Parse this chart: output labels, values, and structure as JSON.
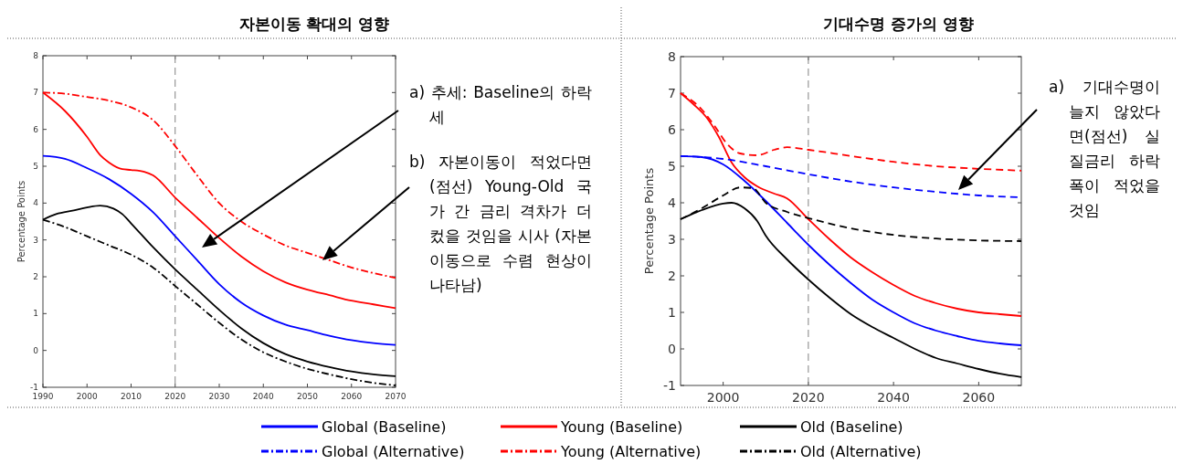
{
  "chart_data": [
    {
      "type": "line",
      "title": "자본이동 확대의 영향",
      "ylabel": "Percentage Points",
      "xlim": [
        1990,
        2070
      ],
      "xticks": [
        1990,
        2000,
        2010,
        2020,
        2030,
        2040,
        2050,
        2060,
        2070
      ],
      "ylim": [
        -1,
        8
      ],
      "yticks": [
        -1,
        0,
        1,
        2,
        3,
        4,
        5,
        6,
        7,
        8
      ],
      "grid": false,
      "legend": "bottom",
      "ref_lines": [
        {
          "axis": "x",
          "value": 2020,
          "color": "#808080",
          "line_style": "dashed"
        }
      ],
      "annotations": [
        "a) 추세: Baseline의 하락세",
        "b) 자본이동이 적었다면(점선) Young-Old 국가 간 금리 격차가 더 컸을 것임을 시사 (자본이동으로 수렴 현상이 나타남)"
      ],
      "series": [
        {
          "name": "Global (Baseline)",
          "color": "#0000ff",
          "line_style": "solid",
          "x": [
            1990,
            1995,
            2000,
            2005,
            2010,
            2015,
            2020,
            2025,
            2030,
            2035,
            2040,
            2045,
            2050,
            2055,
            2060,
            2065,
            2070
          ],
          "values": [
            5.28,
            5.2,
            4.95,
            4.65,
            4.25,
            3.75,
            3.1,
            2.45,
            1.8,
            1.3,
            0.95,
            0.7,
            0.55,
            0.4,
            0.28,
            0.2,
            0.15
          ]
        },
        {
          "name": "Young (Baseline)",
          "color": "#ff0000",
          "line_style": "solid",
          "x": [
            1990,
            1995,
            2000,
            2003,
            2005,
            2008,
            2010,
            2013,
            2015,
            2020,
            2025,
            2030,
            2035,
            2040,
            2045,
            2050,
            2055,
            2060,
            2065,
            2070
          ],
          "values": [
            7.0,
            6.5,
            5.8,
            5.3,
            5.1,
            4.92,
            4.9,
            4.85,
            4.75,
            4.15,
            3.6,
            3.05,
            2.55,
            2.15,
            1.85,
            1.65,
            1.5,
            1.35,
            1.25,
            1.15
          ]
        },
        {
          "name": "Old (Baseline)",
          "color": "#000000",
          "line_style": "solid",
          "x": [
            1990,
            1993,
            1997,
            2000,
            2003,
            2006,
            2008,
            2010,
            2015,
            2020,
            2025,
            2030,
            2035,
            2040,
            2045,
            2050,
            2055,
            2060,
            2065,
            2070
          ],
          "values": [
            3.55,
            3.7,
            3.8,
            3.88,
            3.93,
            3.85,
            3.7,
            3.45,
            2.8,
            2.2,
            1.65,
            1.1,
            0.6,
            0.2,
            -0.1,
            -0.3,
            -0.45,
            -0.57,
            -0.65,
            -0.7
          ]
        },
        {
          "name": "Global (Alternative)",
          "color": "#0000ff",
          "line_style": "dashdot"
        },
        {
          "name": "Young (Alternative)",
          "color": "#ff0000",
          "line_style": "dashdot",
          "x": [
            1990,
            1995,
            2000,
            2005,
            2010,
            2015,
            2020,
            2025,
            2030,
            2035,
            2040,
            2045,
            2050,
            2055,
            2060,
            2065,
            2070
          ],
          "values": [
            7.0,
            6.97,
            6.88,
            6.78,
            6.6,
            6.25,
            5.55,
            4.75,
            4.0,
            3.5,
            3.15,
            2.85,
            2.65,
            2.45,
            2.25,
            2.1,
            1.97
          ]
        },
        {
          "name": "Old (Alternative)",
          "color": "#000000",
          "line_style": "dashdot",
          "x": [
            1990,
            1995,
            2000,
            2005,
            2010,
            2015,
            2020,
            2025,
            2030,
            2035,
            2040,
            2045,
            2050,
            2055,
            2060,
            2065,
            2070
          ],
          "values": [
            3.55,
            3.35,
            3.1,
            2.85,
            2.6,
            2.25,
            1.75,
            1.25,
            0.75,
            0.3,
            -0.05,
            -0.3,
            -0.5,
            -0.65,
            -0.78,
            -0.88,
            -0.95
          ]
        }
      ]
    },
    {
      "type": "line",
      "title": "기대수명 증가의 영향",
      "ylabel": "Percentage Points",
      "xlim": [
        1990,
        2070
      ],
      "xticks": [
        2000,
        2020,
        2040,
        2060
      ],
      "ylim": [
        -1,
        8
      ],
      "yticks": [
        -1,
        0,
        1,
        2,
        3,
        4,
        5,
        6,
        7,
        8
      ],
      "grid": false,
      "ref_lines": [
        {
          "axis": "x",
          "value": 2020,
          "color": "#808080",
          "line_style": "dashed"
        }
      ],
      "annotations": [
        "a) 기대수명이 늘지 않았다면(점선) 실질금리 하락폭이 적었을 것임"
      ],
      "series": [
        {
          "color": "#0000ff",
          "line_style": "solid",
          "x": [
            1990,
            1995,
            2000,
            2005,
            2010,
            2015,
            2020,
            2025,
            2030,
            2035,
            2040,
            2045,
            2050,
            2055,
            2060,
            2065,
            2070
          ],
          "values": [
            5.28,
            5.25,
            5.05,
            4.6,
            4.05,
            3.45,
            2.85,
            2.3,
            1.8,
            1.35,
            1.0,
            0.7,
            0.5,
            0.35,
            0.22,
            0.15,
            0.1
          ]
        },
        {
          "color": "#ff0000",
          "line_style": "solid",
          "x": [
            1990,
            1993,
            1996,
            1999,
            2002,
            2005,
            2008,
            2012,
            2015,
            2020,
            2025,
            2030,
            2035,
            2040,
            2045,
            2050,
            2055,
            2060,
            2065,
            2070
          ],
          "values": [
            7.0,
            6.7,
            6.35,
            5.8,
            5.1,
            4.7,
            4.45,
            4.25,
            4.12,
            3.55,
            3.0,
            2.5,
            2.1,
            1.75,
            1.45,
            1.25,
            1.1,
            1.0,
            0.95,
            0.9
          ]
        },
        {
          "color": "#000000",
          "line_style": "solid",
          "x": [
            1990,
            1995,
            2000,
            2002,
            2005,
            2008,
            2010,
            2015,
            2020,
            2025,
            2030,
            2035,
            2040,
            2045,
            2050,
            2055,
            2060,
            2065,
            2070
          ],
          "values": [
            3.55,
            3.8,
            3.98,
            4.0,
            3.85,
            3.5,
            3.1,
            2.45,
            1.9,
            1.4,
            0.95,
            0.6,
            0.3,
            0.0,
            -0.25,
            -0.4,
            -0.55,
            -0.68,
            -0.77
          ]
        },
        {
          "color": "#0000ff",
          "line_style": "dashed",
          "x": [
            1990,
            2000,
            2010,
            2020,
            2030,
            2040,
            2050,
            2060,
            2070
          ],
          "values": [
            5.28,
            5.2,
            5.0,
            4.78,
            4.58,
            4.42,
            4.3,
            4.2,
            4.15
          ]
        },
        {
          "color": "#ff0000",
          "line_style": "dashed",
          "x": [
            1990,
            1995,
            1998,
            2001,
            2004,
            2008,
            2012,
            2015,
            2020,
            2030,
            2040,
            2050,
            2060,
            2070
          ],
          "values": [
            7.0,
            6.55,
            6.1,
            5.6,
            5.35,
            5.3,
            5.45,
            5.52,
            5.45,
            5.28,
            5.12,
            5.0,
            4.93,
            4.88
          ]
        },
        {
          "color": "#000000",
          "line_style": "dashed",
          "x": [
            1990,
            1995,
            2000,
            2004,
            2007,
            2010,
            2015,
            2020,
            2030,
            2040,
            2050,
            2060,
            2070
          ],
          "values": [
            3.55,
            3.85,
            4.2,
            4.42,
            4.4,
            4.0,
            3.75,
            3.58,
            3.3,
            3.12,
            3.02,
            2.97,
            2.95
          ]
        }
      ]
    }
  ]
}
